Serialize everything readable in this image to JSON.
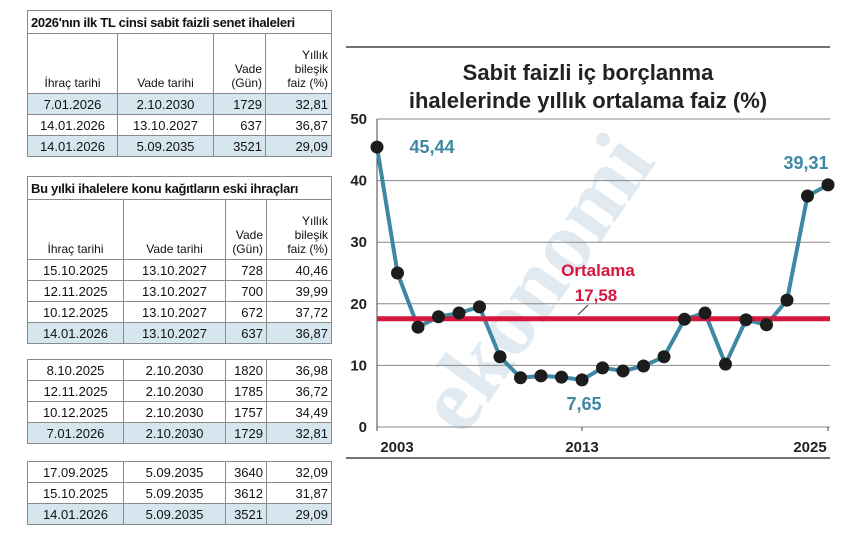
{
  "table1": {
    "title": "2026'nın ilk TL cinsi sabit faizli senet ihaleleri",
    "columns": [
      [
        "İhraç tarihi"
      ],
      [
        "Vade tarihi"
      ],
      [
        "Vade",
        "(Gün)"
      ],
      [
        "Yıllık",
        "bileşik",
        "faiz (%)"
      ]
    ],
    "groups": [
      [
        [
          "7.01.2026",
          "2.10.2030",
          "1729",
          "32,81"
        ],
        [
          "14.01.2026",
          "13.10.2027",
          "637",
          "36,87"
        ],
        [
          "14.01.2026",
          "5.09.2035",
          "3521",
          "29,09"
        ]
      ]
    ],
    "highlight_rows": [
      [
        0,
        2
      ]
    ]
  },
  "table2": {
    "title": "Bu yılki ihalelere konu kağıtların eski ihraçları",
    "columns": [
      [
        "İhraç tarihi"
      ],
      [
        "Vade tarihi"
      ],
      [
        "Vade",
        "(Gün)"
      ],
      [
        "Yıllık",
        "bileşik",
        "faiz (%)"
      ]
    ],
    "groups": [
      [
        [
          "15.10.2025",
          "13.10.2027",
          "728",
          "40,46"
        ],
        [
          "12.11.2025",
          "13.10.2027",
          "700",
          "39,99"
        ],
        [
          "10.12.2025",
          "13.10.2027",
          "672",
          "37,72"
        ],
        [
          "14.01.2026",
          "13.10.2027",
          "637",
          "36,87"
        ]
      ],
      [
        [
          "8.10.2025",
          "2.10.2030",
          "1820",
          "36,98"
        ],
        [
          "12.11.2025",
          "2.10.2030",
          "1785",
          "36,72"
        ],
        [
          "10.12.2025",
          "2.10.2030",
          "1757",
          "34,49"
        ],
        [
          "7.01.2026",
          "2.10.2030",
          "1729",
          "32,81"
        ]
      ],
      [
        [
          "17.09.2025",
          "5.09.2035",
          "3640",
          "32,09"
        ],
        [
          "15.10.2025",
          "5.09.2035",
          "3612",
          "31,87"
        ],
        [
          "14.01.2026",
          "5.09.2035",
          "3521",
          "29,09"
        ]
      ]
    ],
    "highlight_rows": [
      [
        3
      ],
      [
        3
      ],
      [
        2
      ]
    ]
  },
  "chart_data": {
    "type": "line",
    "title": [
      "Sabit faizli iç borçlanma",
      "ihalelerinde yıllık ortalama faiz (%)"
    ],
    "watermark": "ekonomi",
    "x": [
      2003,
      2004,
      2005,
      2006,
      2007,
      2008,
      2009,
      2010,
      2011,
      2012,
      2013,
      2014,
      2015,
      2016,
      2017,
      2018,
      2019,
      2020,
      2021,
      2022,
      2023,
      2024,
      2025
    ],
    "values": [
      45.44,
      25.0,
      16.2,
      17.9,
      18.5,
      19.5,
      11.4,
      8.0,
      8.3,
      8.1,
      7.65,
      9.6,
      9.1,
      9.9,
      11.4,
      17.5,
      18.5,
      10.2,
      17.4,
      16.6,
      20.6,
      37.5,
      39.31
    ],
    "value_labels": [
      "45,44",
      null,
      null,
      null,
      null,
      null,
      null,
      null,
      null,
      null,
      "7,65",
      null,
      null,
      null,
      null,
      null,
      null,
      null,
      null,
      null,
      null,
      null,
      "39,31"
    ],
    "color": "#3f88a3",
    "marker_color": "#1c1c1c",
    "average": {
      "label": "Ortalama",
      "value": 17.58,
      "value_label": "17,58",
      "color": "#d6173d"
    },
    "xlim": [
      2003,
      2025
    ],
    "xticks": [
      2003,
      2013,
      2025
    ],
    "ylim": [
      0,
      50
    ],
    "yticks": [
      0,
      10,
      20,
      30,
      40,
      50
    ],
    "grid": true
  }
}
